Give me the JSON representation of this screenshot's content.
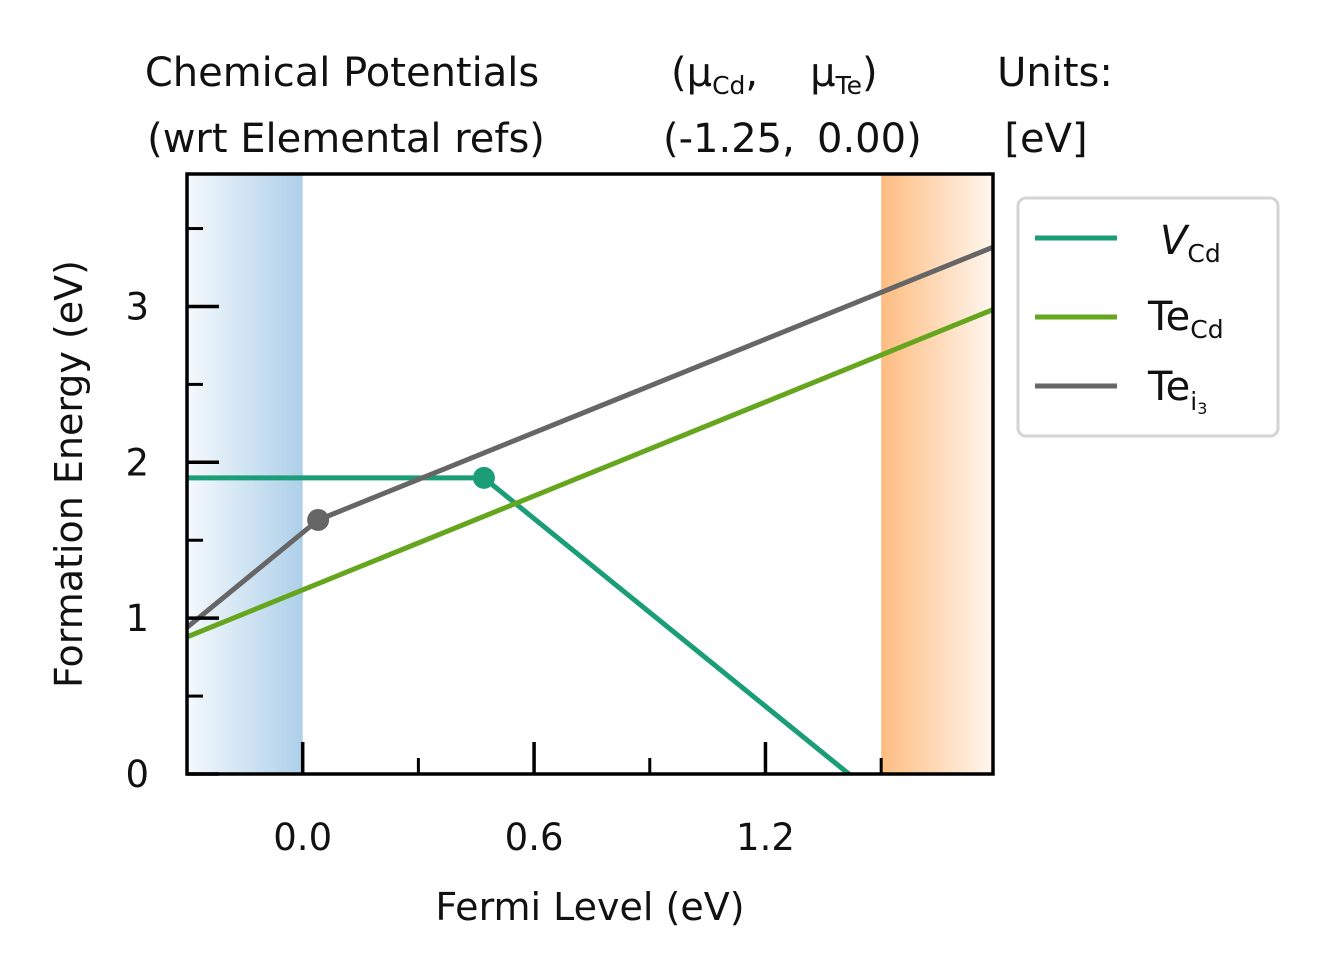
{
  "header": {
    "col1_line1": "Chemical Potentials",
    "col1_line2": "(wrt Elemental refs)",
    "col2_line1_open": "(",
    "mu": "μ",
    "mu1_sub": "Cd",
    "sep": ",",
    "mu2_sub": "Te",
    "col2_line1_close": ")",
    "col2_line2_a": "(-1.25,",
    "col2_line2_b": "0.00)",
    "col3_line1": "Units:",
    "col3_line2": "[eV]"
  },
  "colors": {
    "V_Cd": "#1b9e77",
    "Te_Cd": "#66a61e",
    "Te_i3": "#666666",
    "vbm_shade": "#a9cde8",
    "cbm_shade": "#fdb97a"
  },
  "chart_data": {
    "type": "line",
    "xlabel": "Fermi Level (eV)",
    "ylabel": "Formation Energy (eV)",
    "xlim": [
      -0.3,
      1.79
    ],
    "ylim": [
      0,
      3.85
    ],
    "xticks": [
      0.0,
      0.6,
      1.2
    ],
    "xtick_labels": [
      "0.0",
      "0.6",
      "1.2"
    ],
    "yticks": [
      0,
      1,
      2,
      3
    ],
    "ytick_labels": [
      "0",
      "1",
      "2",
      "3"
    ],
    "vbm": 0.0,
    "cbm": 1.5,
    "legend_placement": "outside-right",
    "series": [
      {
        "key": "V_Cd",
        "label_main": "V",
        "label_sub": "Cd",
        "x": [
          -0.3,
          0.47,
          1.79
        ],
        "y": [
          1.9,
          1.9,
          -0.75
        ],
        "transitions": [
          [
            0.47,
            1.9
          ]
        ]
      },
      {
        "key": "Te_Cd",
        "label_main": "Te",
        "label_sub": "Cd",
        "x": [
          -0.3,
          1.79
        ],
        "y": [
          0.88,
          2.98
        ],
        "transitions": []
      },
      {
        "key": "Te_i3",
        "label_main": "Te",
        "label_sub": "i",
        "label_subsub": "3",
        "x": [
          -0.3,
          0.04,
          1.79
        ],
        "y": [
          0.94,
          1.63,
          3.38
        ],
        "transitions": [
          [
            0.04,
            1.63
          ]
        ]
      }
    ]
  }
}
